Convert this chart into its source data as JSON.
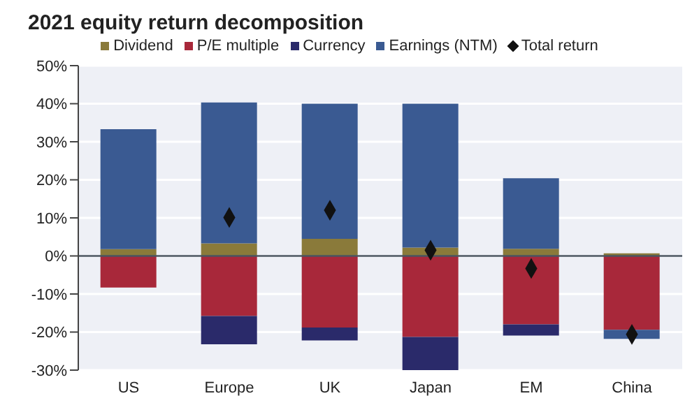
{
  "chart_data": {
    "type": "bar",
    "title": "2021 equity return decomposition",
    "categories": [
      "US",
      "Europe",
      "UK",
      "Japan",
      "EM",
      "China"
    ],
    "stacked": true,
    "series": [
      {
        "name": "Dividend",
        "color": "#8a7a3a",
        "values": [
          1.8,
          3.3,
          4.5,
          2.2,
          1.9,
          0.7
        ]
      },
      {
        "name": "P/E multiple",
        "color": "#a8283a",
        "values": [
          -8.3,
          -15.8,
          -18.8,
          -21.3,
          -18,
          -19.4
        ]
      },
      {
        "name": "Currency",
        "color": "#2a2a6a",
        "values": [
          0,
          -7.4,
          -3.4,
          -8.7,
          -2.9,
          0
        ]
      },
      {
        "name": "Earnings (NTM)",
        "color": "#3a5a92",
        "values": [
          31.5,
          37,
          35.5,
          37.8,
          18.5,
          -2.4
        ]
      },
      {
        "name": "Total return",
        "type": "scatter",
        "color": "#111111",
        "marker": "diamond",
        "values": [
          null,
          10.1,
          12,
          1.5,
          -3.3,
          -20.6
        ]
      }
    ],
    "ylim": [
      -30,
      50
    ],
    "yticks": [
      {
        "value": -30,
        "label": "-30%"
      },
      {
        "value": -20,
        "label": "-20%"
      },
      {
        "value": -10,
        "label": "-10%"
      },
      {
        "value": 0,
        "label": "0%"
      },
      {
        "value": 10,
        "label": "10%"
      },
      {
        "value": 20,
        "label": "20%"
      },
      {
        "value": 30,
        "label": "30%"
      },
      {
        "value": 40,
        "label": "40%"
      },
      {
        "value": 50,
        "label": "50%"
      }
    ],
    "grid": "y",
    "legend": "top"
  }
}
